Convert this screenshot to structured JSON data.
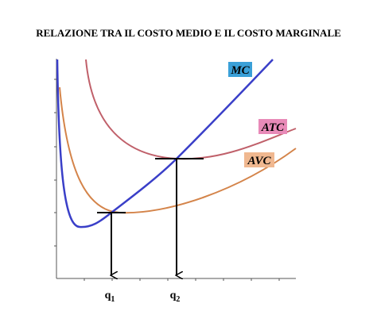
{
  "title": "RELAZIONE TRA IL COSTO MEDIO E IL COSTO MARGINALE",
  "curves": [
    {
      "label": "MC"
    },
    {
      "label": "ATC"
    },
    {
      "label": "AVC"
    }
  ],
  "x_labels": [
    {
      "base": "q",
      "sub": "1"
    },
    {
      "base": "q",
      "sub": "2"
    }
  ]
}
